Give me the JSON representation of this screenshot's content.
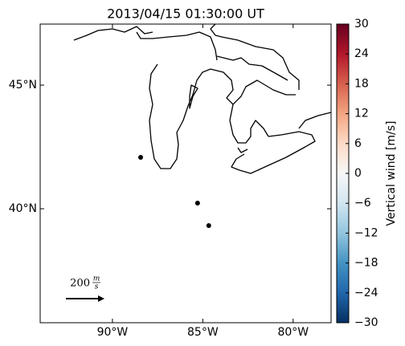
{
  "chart_data": {
    "type": "scatter",
    "title": "2013/04/15 01:30:00 UT",
    "x": [
      -88.44,
      -85.29,
      -84.67
    ],
    "y": [
      42.08,
      40.23,
      39.32
    ],
    "color": "#000000",
    "xlim": [
      -94,
      -77.9
    ],
    "ylim": [
      35.39,
      47.47
    ],
    "xticks": [
      {
        "value": -90,
        "label": "90°W"
      },
      {
        "value": -85,
        "label": "85°W"
      },
      {
        "value": -80,
        "label": "80°W"
      }
    ],
    "yticks": [
      {
        "value": 40,
        "label": "40°N"
      },
      {
        "value": 45,
        "label": "45°N"
      }
    ],
    "colorbar": {
      "label": "Vertical wind [m/s]",
      "lim": [
        -30,
        30
      ],
      "colors": [
        "#053061",
        "#2166ac",
        "#4393c3",
        "#92c5de",
        "#d1e5f0",
        "#f7f7f7",
        "#fddbc7",
        "#f4a582",
        "#d6604d",
        "#b2182b",
        "#67001f"
      ],
      "ticks": [
        {
          "value": -30,
          "label": "−30"
        },
        {
          "value": -24,
          "label": "−24"
        },
        {
          "value": -18,
          "label": "−18"
        },
        {
          "value": -12,
          "label": "−12"
        },
        {
          "value": -6,
          "label": "−6"
        },
        0,
        6,
        12,
        18,
        24,
        30
      ]
    },
    "quiver_key": {
      "value": 200,
      "unit_top": "m",
      "unit_bottom": "s"
    }
  }
}
